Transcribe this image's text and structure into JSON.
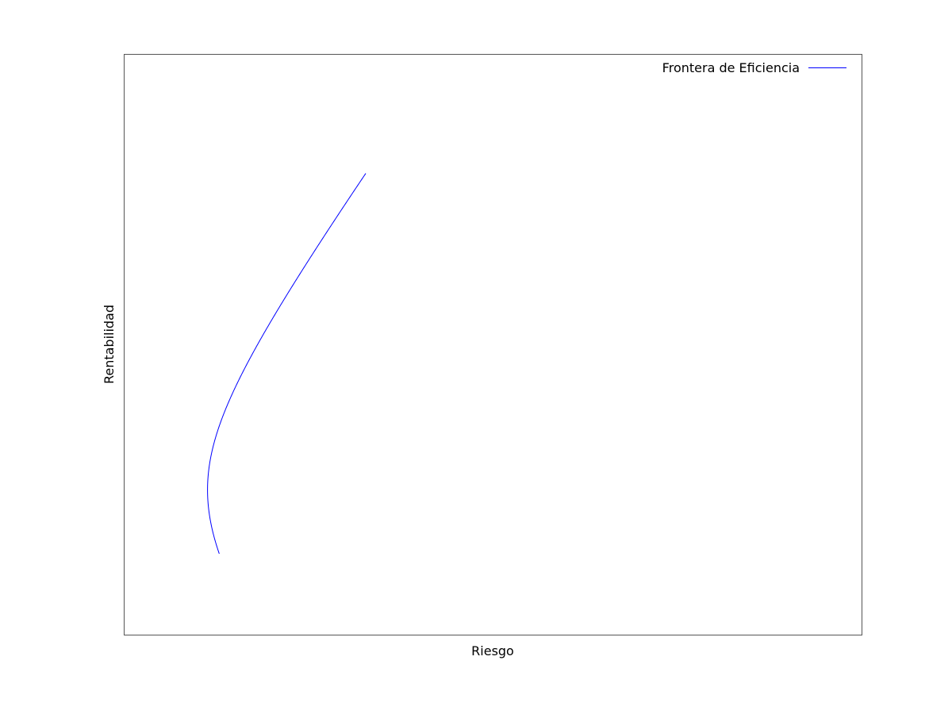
{
  "chart_data": {
    "type": "line",
    "title": "",
    "xlabel": "Riesgo",
    "ylabel": "Rentabilidad",
    "grid": false,
    "ticks": false,
    "legend_position": "top-right",
    "xlim": [
      0,
      1
    ],
    "ylim": [
      0,
      1
    ],
    "series": [
      {
        "name": "Frontera de Eficiencia",
        "color": "#0000ff",
        "frontier": {
          "min_x": 0.113,
          "vertex_y": 0.25,
          "curvature": 31.8,
          "y_start": 0.14,
          "y_end": 0.795
        }
      }
    ]
  }
}
